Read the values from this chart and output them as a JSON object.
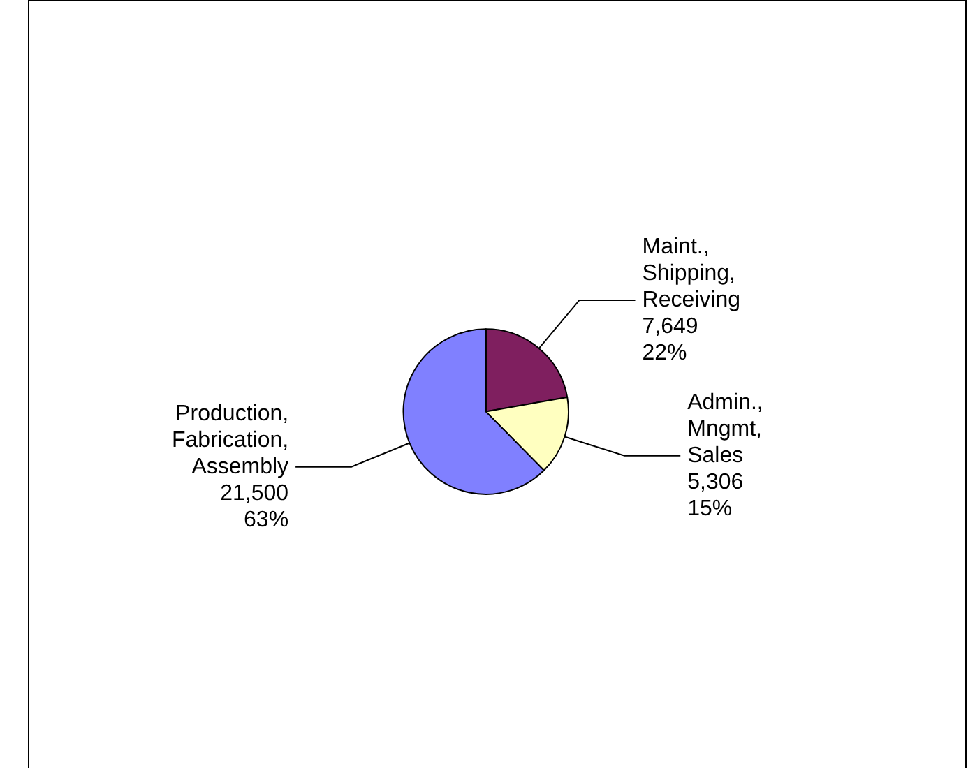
{
  "chart_data": {
    "type": "pie",
    "categories": [
      "Maint.,\nShipping,\nReceiving",
      "Admin.,\nMngmt,\nSales",
      "Production,\nFabrication,\nAssembly"
    ],
    "values": [
      7649,
      5306,
      21500
    ],
    "colors": [
      "#7f1f5f",
      "#ffffc0",
      "#8080ff"
    ],
    "value_labels": [
      "7,649\n22%",
      "5,306\n15%",
      "21,500\n63%"
    ],
    "legend": false
  }
}
